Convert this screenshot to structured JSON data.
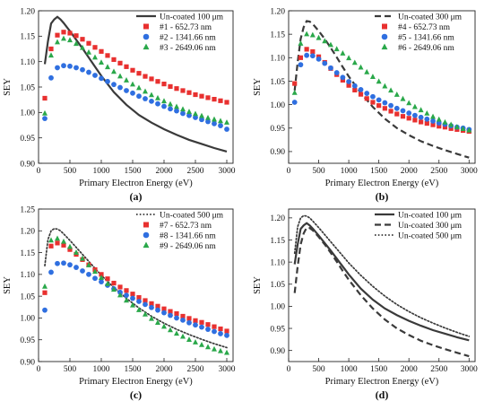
{
  "chart_data": [
    {
      "type": "line",
      "panel_label": "(a)",
      "xlabel": "Primary Electron Energy (eV)",
      "ylabel": "SEY",
      "xlim": [
        0,
        3100
      ],
      "ylim": [
        0.9,
        1.2
      ],
      "xticks": [
        0,
        500,
        1000,
        1500,
        2000,
        2500,
        3000
      ],
      "yticks": [
        0.9,
        0.95,
        1.0,
        1.05,
        1.1,
        1.15,
        1.2
      ],
      "legend_position": "top-right",
      "series": [
        {
          "name": "Un-coated 100 μm",
          "style": "solid",
          "color": "#3a3a3a",
          "x": [
            100,
            150,
            200,
            250,
            300,
            350,
            400,
            500,
            600,
            700,
            800,
            900,
            1000,
            1200,
            1400,
            1600,
            1800,
            2000,
            2200,
            2400,
            2600,
            2800,
            3000
          ],
          "y": [
            1.095,
            1.14,
            1.175,
            1.183,
            1.188,
            1.183,
            1.176,
            1.16,
            1.143,
            1.126,
            1.108,
            1.09,
            1.072,
            1.04,
            1.015,
            0.995,
            0.98,
            0.967,
            0.956,
            0.946,
            0.938,
            0.93,
            0.923
          ]
        },
        {
          "name": "#1 - 652.73 nm",
          "marker": "square",
          "color": "#e8302f",
          "x": [
            100,
            200,
            300,
            400,
            500,
            600,
            700,
            800,
            900,
            1000,
            1100,
            1200,
            1300,
            1400,
            1500,
            1600,
            1700,
            1800,
            1900,
            2000,
            2100,
            2200,
            2300,
            2400,
            2500,
            2600,
            2700,
            2800,
            2900,
            3000
          ],
          "y": [
            1.028,
            1.125,
            1.152,
            1.158,
            1.156,
            1.151,
            1.144,
            1.136,
            1.128,
            1.12,
            1.112,
            1.104,
            1.097,
            1.09,
            1.083,
            1.077,
            1.071,
            1.066,
            1.061,
            1.056,
            1.051,
            1.047,
            1.043,
            1.039,
            1.035,
            1.032,
            1.029,
            1.026,
            1.023,
            1.02
          ]
        },
        {
          "name": "#2 - 1341.66 nm",
          "marker": "circle",
          "color": "#2f6fe0",
          "x": [
            100,
            200,
            300,
            400,
            500,
            600,
            700,
            800,
            900,
            1000,
            1100,
            1200,
            1300,
            1400,
            1500,
            1600,
            1700,
            1800,
            1900,
            2000,
            2100,
            2200,
            2300,
            2400,
            2500,
            2600,
            2700,
            2800,
            2900,
            3000
          ],
          "y": [
            0.988,
            1.068,
            1.088,
            1.092,
            1.091,
            1.088,
            1.084,
            1.079,
            1.073,
            1.067,
            1.061,
            1.055,
            1.049,
            1.043,
            1.038,
            1.032,
            1.027,
            1.022,
            1.017,
            1.012,
            1.007,
            1.003,
            0.998,
            0.994,
            0.99,
            0.986,
            0.982,
            0.978,
            0.974,
            0.967
          ]
        },
        {
          "name": "#3 - 2649.06 nm",
          "marker": "triangle",
          "color": "#2aa84a",
          "x": [
            100,
            200,
            300,
            400,
            500,
            600,
            700,
            800,
            900,
            1000,
            1100,
            1200,
            1300,
            1400,
            1500,
            1600,
            1700,
            1800,
            1900,
            2000,
            2100,
            2200,
            2300,
            2400,
            2500,
            2600,
            2700,
            2800,
            2900,
            3000
          ],
          "y": [
            0.998,
            1.112,
            1.138,
            1.145,
            1.142,
            1.135,
            1.127,
            1.118,
            1.108,
            1.098,
            1.089,
            1.08,
            1.071,
            1.063,
            1.055,
            1.048,
            1.041,
            1.034,
            1.028,
            1.022,
            1.016,
            1.011,
            1.006,
            1.001,
            0.997,
            0.993,
            0.989,
            0.986,
            0.983,
            0.98
          ]
        }
      ]
    },
    {
      "type": "line",
      "panel_label": "(b)",
      "xlabel": "Primary Electron Energy (eV)",
      "ylabel": "SEY",
      "xlim": [
        0,
        3100
      ],
      "ylim": [
        0.875,
        1.2
      ],
      "xticks": [
        0,
        500,
        1000,
        1500,
        2000,
        2500,
        3000
      ],
      "yticks": [
        0.9,
        0.95,
        1.0,
        1.05,
        1.1,
        1.15,
        1.2
      ],
      "legend_position": "top-right",
      "series": [
        {
          "name": "Un-coated 300 μm",
          "style": "dashed",
          "color": "#3a3a3a",
          "x": [
            100,
            150,
            200,
            250,
            300,
            350,
            400,
            500,
            600,
            700,
            800,
            900,
            1000,
            1200,
            1400,
            1600,
            1800,
            2000,
            2200,
            2400,
            2600,
            2800,
            3000
          ],
          "y": [
            1.03,
            1.09,
            1.14,
            1.165,
            1.178,
            1.177,
            1.172,
            1.157,
            1.14,
            1.121,
            1.101,
            1.08,
            1.06,
            1.025,
            0.995,
            0.97,
            0.95,
            0.935,
            0.922,
            0.912,
            0.903,
            0.895,
            0.887
          ]
        },
        {
          "name": "#4 - 652.73 nm",
          "marker": "square",
          "color": "#e8302f",
          "x": [
            100,
            200,
            300,
            400,
            500,
            600,
            700,
            800,
            900,
            1000,
            1100,
            1200,
            1300,
            1400,
            1500,
            1600,
            1700,
            1800,
            1900,
            2000,
            2100,
            2200,
            2300,
            2400,
            2500,
            2600,
            2700,
            2800,
            2900,
            3000
          ],
          "y": [
            1.045,
            1.1,
            1.118,
            1.113,
            1.102,
            1.09,
            1.077,
            1.064,
            1.052,
            1.041,
            1.031,
            1.022,
            1.013,
            1.005,
            0.998,
            0.992,
            0.986,
            0.98,
            0.975,
            0.971,
            0.967,
            0.963,
            0.96,
            0.957,
            0.954,
            0.952,
            0.949,
            0.947,
            0.945,
            0.943
          ]
        },
        {
          "name": "#5 - 1341.66 nm",
          "marker": "circle",
          "color": "#2f6fe0",
          "x": [
            100,
            200,
            300,
            400,
            500,
            600,
            700,
            800,
            900,
            1000,
            1100,
            1200,
            1300,
            1400,
            1500,
            1600,
            1700,
            1800,
            1900,
            2000,
            2100,
            2200,
            2300,
            2400,
            2500,
            2600,
            2700,
            2800,
            2900,
            3000
          ],
          "y": [
            1.005,
            1.085,
            1.105,
            1.104,
            1.097,
            1.088,
            1.078,
            1.068,
            1.058,
            1.049,
            1.04,
            1.032,
            1.024,
            1.017,
            1.01,
            1.004,
            0.998,
            0.992,
            0.987,
            0.982,
            0.977,
            0.973,
            0.969,
            0.965,
            0.961,
            0.958,
            0.955,
            0.952,
            0.95,
            0.947
          ]
        },
        {
          "name": "#6 - 2649.06 nm",
          "marker": "triangle",
          "color": "#2aa84a",
          "x": [
            100,
            200,
            300,
            400,
            500,
            600,
            700,
            800,
            900,
            1000,
            1100,
            1200,
            1300,
            1400,
            1500,
            1600,
            1700,
            1800,
            1900,
            2000,
            2100,
            2200,
            2300,
            2400,
            2500,
            2600,
            2700,
            2800,
            2900,
            3000
          ],
          "y": [
            1.025,
            1.13,
            1.15,
            1.148,
            1.142,
            1.135,
            1.127,
            1.118,
            1.109,
            1.099,
            1.089,
            1.079,
            1.069,
            1.059,
            1.049,
            1.039,
            1.03,
            1.021,
            1.012,
            1.003,
            0.995,
            0.988,
            0.981,
            0.974,
            0.968,
            0.962,
            0.957,
            0.952,
            0.948,
            0.945
          ]
        }
      ]
    },
    {
      "type": "line",
      "panel_label": "(c)",
      "xlabel": "Primary Electron Energy (eV)",
      "ylabel": "SEY",
      "xlim": [
        0,
        3100
      ],
      "ylim": [
        0.9,
        1.25
      ],
      "xticks": [
        0,
        500,
        1000,
        1500,
        2000,
        2500,
        3000
      ],
      "yticks": [
        0.9,
        0.95,
        1.0,
        1.05,
        1.1,
        1.15,
        1.2,
        1.25
      ],
      "legend_position": "top-right",
      "series": [
        {
          "name": "Un-coated 500 μm",
          "style": "dotted",
          "color": "#3a3a3a",
          "x": [
            100,
            150,
            200,
            250,
            300,
            350,
            400,
            500,
            600,
            700,
            800,
            900,
            1000,
            1200,
            1400,
            1600,
            1800,
            2000,
            2200,
            2400,
            2600,
            2800,
            3000
          ],
          "y": [
            1.12,
            1.18,
            1.2,
            1.205,
            1.204,
            1.2,
            1.193,
            1.178,
            1.162,
            1.146,
            1.13,
            1.114,
            1.098,
            1.07,
            1.045,
            1.023,
            1.004,
            0.988,
            0.974,
            0.962,
            0.951,
            0.941,
            0.932
          ]
        },
        {
          "name": "#7 - 652.73 nm",
          "marker": "square",
          "color": "#e8302f",
          "x": [
            100,
            200,
            300,
            400,
            500,
            600,
            700,
            800,
            900,
            1000,
            1100,
            1200,
            1300,
            1400,
            1500,
            1600,
            1700,
            1800,
            1900,
            2000,
            2100,
            2200,
            2300,
            2400,
            2500,
            2600,
            2700,
            2800,
            2900,
            3000
          ],
          "y": [
            1.058,
            1.165,
            1.172,
            1.167,
            1.157,
            1.146,
            1.134,
            1.122,
            1.111,
            1.1,
            1.09,
            1.08,
            1.071,
            1.063,
            1.055,
            1.047,
            1.04,
            1.033,
            1.027,
            1.021,
            1.015,
            1.01,
            1.004,
            0.999,
            0.994,
            0.99,
            0.985,
            0.98,
            0.975,
            0.97
          ]
        },
        {
          "name": "#8 - 1341.66 nm",
          "marker": "circle",
          "color": "#2f6fe0",
          "x": [
            100,
            200,
            300,
            400,
            500,
            600,
            700,
            800,
            900,
            1000,
            1100,
            1200,
            1300,
            1400,
            1500,
            1600,
            1700,
            1800,
            1900,
            2000,
            2100,
            2200,
            2300,
            2400,
            2500,
            2600,
            2700,
            2800,
            2900,
            3000
          ],
          "y": [
            1.018,
            1.105,
            1.125,
            1.126,
            1.122,
            1.116,
            1.108,
            1.1,
            1.091,
            1.083,
            1.075,
            1.067,
            1.059,
            1.052,
            1.045,
            1.038,
            1.031,
            1.024,
            1.018,
            1.012,
            1.006,
            1.0,
            0.995,
            0.989,
            0.984,
            0.979,
            0.974,
            0.969,
            0.964,
            0.96
          ]
        },
        {
          "name": "#9 - 2649.06 nm",
          "marker": "triangle",
          "color": "#2aa84a",
          "x": [
            100,
            200,
            300,
            400,
            500,
            600,
            700,
            800,
            900,
            1000,
            1100,
            1200,
            1300,
            1400,
            1500,
            1600,
            1700,
            1800,
            1900,
            2000,
            2100,
            2200,
            2300,
            2400,
            2500,
            2600,
            2700,
            2800,
            2900,
            3000
          ],
          "y": [
            1.072,
            1.178,
            1.182,
            1.175,
            1.163,
            1.15,
            1.136,
            1.121,
            1.106,
            1.092,
            1.078,
            1.065,
            1.052,
            1.04,
            1.029,
            1.018,
            1.008,
            0.998,
            0.989,
            0.98,
            0.972,
            0.964,
            0.957,
            0.95,
            0.944,
            0.938,
            0.933,
            0.928,
            0.924,
            0.92
          ]
        }
      ]
    },
    {
      "type": "line",
      "panel_label": "(d)",
      "xlabel": "Primary Electron Energy (eV)",
      "ylabel": "SEY",
      "xlim": [
        0,
        3100
      ],
      "ylim": [
        0.875,
        1.22
      ],
      "xticks": [
        0,
        500,
        1000,
        1500,
        2000,
        2500,
        3000
      ],
      "yticks": [
        0.9,
        0.95,
        1.0,
        1.05,
        1.1,
        1.15,
        1.2
      ],
      "legend_position": "top-right",
      "series": [
        {
          "name": "Un-coated 100 μm",
          "style": "solid",
          "color": "#3a3a3a",
          "x": [
            100,
            150,
            200,
            250,
            300,
            350,
            400,
            500,
            600,
            700,
            800,
            900,
            1000,
            1200,
            1400,
            1600,
            1800,
            2000,
            2200,
            2400,
            2600,
            2800,
            3000
          ],
          "y": [
            1.095,
            1.14,
            1.175,
            1.183,
            1.188,
            1.183,
            1.176,
            1.16,
            1.143,
            1.126,
            1.108,
            1.09,
            1.072,
            1.04,
            1.015,
            0.995,
            0.98,
            0.967,
            0.956,
            0.946,
            0.938,
            0.93,
            0.923
          ]
        },
        {
          "name": "Un-coated 300 μm",
          "style": "dashed",
          "color": "#3a3a3a",
          "x": [
            100,
            150,
            200,
            250,
            300,
            350,
            400,
            500,
            600,
            700,
            800,
            900,
            1000,
            1200,
            1400,
            1600,
            1800,
            2000,
            2200,
            2400,
            2600,
            2800,
            3000
          ],
          "y": [
            1.03,
            1.09,
            1.14,
            1.165,
            1.178,
            1.177,
            1.172,
            1.157,
            1.14,
            1.121,
            1.101,
            1.08,
            1.06,
            1.025,
            0.995,
            0.97,
            0.95,
            0.935,
            0.922,
            0.912,
            0.903,
            0.895,
            0.887
          ]
        },
        {
          "name": "Un-coated 500 μm",
          "style": "dotted",
          "color": "#3a3a3a",
          "x": [
            100,
            150,
            200,
            250,
            300,
            350,
            400,
            500,
            600,
            700,
            800,
            900,
            1000,
            1200,
            1400,
            1600,
            1800,
            2000,
            2200,
            2400,
            2600,
            2800,
            3000
          ],
          "y": [
            1.12,
            1.18,
            1.2,
            1.205,
            1.204,
            1.2,
            1.193,
            1.178,
            1.162,
            1.146,
            1.13,
            1.114,
            1.098,
            1.07,
            1.045,
            1.023,
            1.004,
            0.988,
            0.974,
            0.962,
            0.951,
            0.941,
            0.932
          ]
        }
      ]
    }
  ]
}
